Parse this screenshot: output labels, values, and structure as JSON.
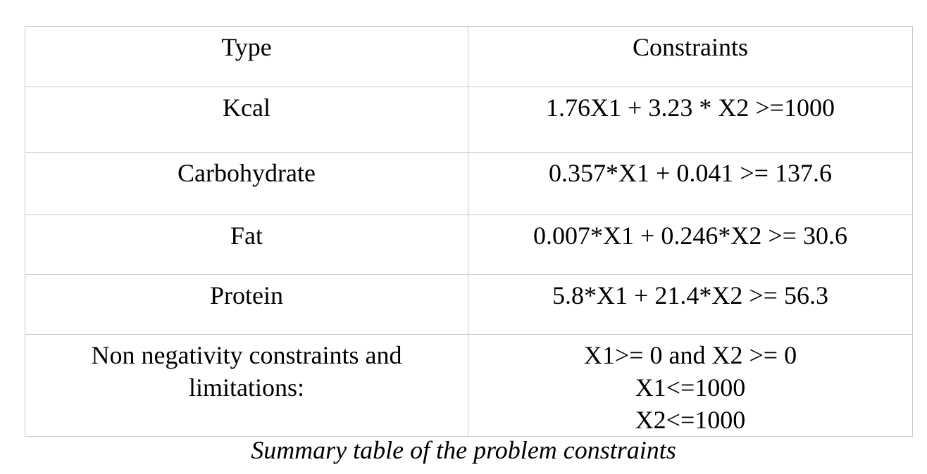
{
  "table": {
    "headers": {
      "type": "Type",
      "constraints": "Constraints"
    },
    "rows": [
      {
        "type": "Kcal",
        "constraints": [
          "1.76X1 + 3.23 * X2 >=1000"
        ]
      },
      {
        "type": "Carbohydrate",
        "constraints": [
          "0.357*X1 + 0.041 >= 137.6"
        ]
      },
      {
        "type": "Fat",
        "constraints": [
          "0.007*X1 + 0.246*X2 >= 30.6"
        ]
      },
      {
        "type": "Protein",
        "constraints": [
          "5.8*X1 + 21.4*X2 >= 56.3"
        ]
      },
      {
        "type": "Non negativity constraints and limitations:",
        "constraints": [
          "X1>= 0 and X2 >= 0",
          "X1<=1000",
          "X2<=1000"
        ]
      }
    ]
  },
  "caption": "Summary table of the problem constraints"
}
